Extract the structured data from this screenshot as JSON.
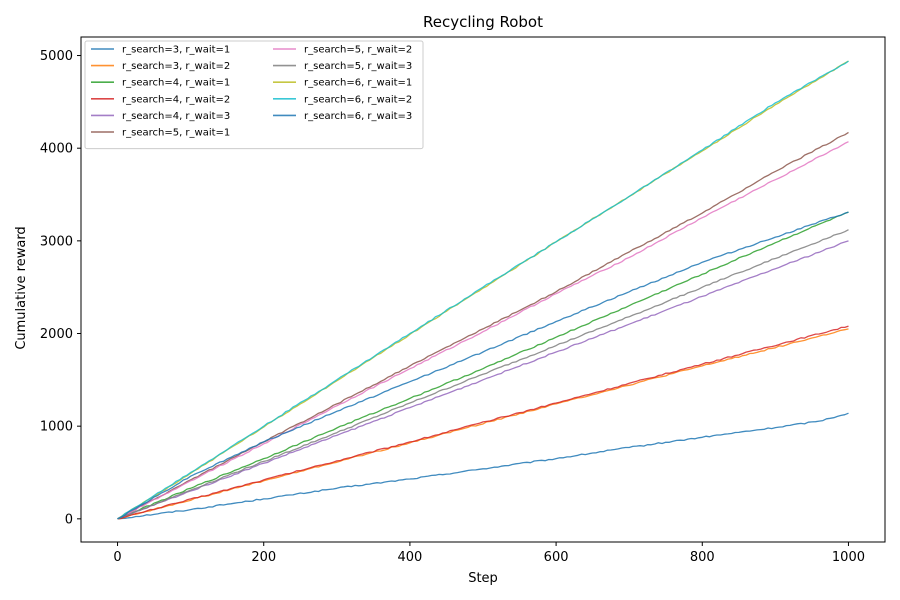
{
  "chart_data": {
    "type": "line",
    "title": "Recycling Robot",
    "xlabel": "Step",
    "ylabel": "Cumulative reward",
    "xlim": [
      -50,
      1050
    ],
    "ylim": [
      -250,
      5200
    ],
    "xticks": [
      0,
      200,
      400,
      600,
      800,
      1000
    ],
    "yticks": [
      0,
      1000,
      2000,
      3000,
      4000,
      5000
    ],
    "grid": false,
    "legend_position": "top-left",
    "legend_columns": 2,
    "series": [
      {
        "name": "r_search=3, r_wait=1",
        "color": "#1f77b4",
        "x": [
          0,
          100,
          200,
          300,
          400,
          500,
          600,
          700,
          800,
          900,
          960,
          1000
        ],
        "y": [
          0,
          100,
          215,
          330,
          430,
          540,
          650,
          770,
          880,
          985,
          1055,
          1140
        ]
      },
      {
        "name": "r_search=3, r_wait=2",
        "color": "#ff7f0e",
        "x": [
          0,
          200,
          400,
          600,
          800,
          1000
        ],
        "y": [
          0,
          410,
          820,
          1240,
          1650,
          2050
        ]
      },
      {
        "name": "r_search=4, r_wait=1",
        "color": "#2ca02c",
        "x": [
          0,
          100,
          200,
          300,
          400,
          500,
          600,
          700,
          800,
          900,
          1000
        ],
        "y": [
          0,
          330,
          650,
          980,
          1300,
          1620,
          1960,
          2300,
          2640,
          2980,
          3310
        ]
      },
      {
        "name": "r_search=4, r_wait=2",
        "color": "#d62728",
        "x": [
          0,
          200,
          400,
          600,
          800,
          1000
        ],
        "y": [
          0,
          420,
          830,
          1250,
          1670,
          2080
        ]
      },
      {
        "name": "r_search=4, r_wait=3",
        "color": "#9467bd",
        "x": [
          0,
          100,
          200,
          300,
          400,
          500,
          600,
          700,
          800,
          900,
          1000
        ],
        "y": [
          0,
          300,
          600,
          900,
          1200,
          1500,
          1800,
          2100,
          2400,
          2700,
          3000
        ]
      },
      {
        "name": "r_search=5, r_wait=1",
        "color": "#8c564b",
        "x": [
          0,
          100,
          200,
          300,
          400,
          500,
          600,
          700,
          800,
          900,
          1000
        ],
        "y": [
          0,
          420,
          830,
          1240,
          1650,
          2050,
          2450,
          2880,
          3300,
          3750,
          4170
        ]
      },
      {
        "name": "r_search=5, r_wait=2",
        "color": "#e377c2",
        "x": [
          0,
          100,
          200,
          300,
          400,
          500,
          600,
          700,
          800,
          900,
          1000
        ],
        "y": [
          0,
          410,
          810,
          1220,
          1620,
          2020,
          2430,
          2820,
          3250,
          3660,
          4070
        ]
      },
      {
        "name": "r_search=5, r_wait=3",
        "color": "#7f7f7f",
        "x": [
          0,
          100,
          200,
          300,
          400,
          500,
          600,
          700,
          800,
          900,
          1000
        ],
        "y": [
          0,
          310,
          620,
          930,
          1250,
          1560,
          1870,
          2180,
          2500,
          2810,
          3120
        ]
      },
      {
        "name": "r_search=6, r_wait=1",
        "color": "#bcbd22",
        "x": [
          0,
          100,
          200,
          300,
          400,
          500,
          600,
          700,
          800,
          900,
          1000
        ],
        "y": [
          0,
          490,
          990,
          1490,
          1990,
          2490,
          2990,
          3480,
          3970,
          4470,
          4940
        ]
      },
      {
        "name": "r_search=6, r_wait=2",
        "color": "#17becf",
        "x": [
          0,
          100,
          200,
          300,
          400,
          500,
          600,
          700,
          800,
          900,
          1000
        ],
        "y": [
          0,
          500,
          1000,
          1500,
          2000,
          2500,
          2990,
          3480,
          3980,
          4490,
          4940
        ]
      },
      {
        "name": "r_search=6, r_wait=3",
        "color": "#1f77b4",
        "x": [
          0,
          100,
          200,
          300,
          400,
          500,
          600,
          700,
          800,
          900,
          1000
        ],
        "y": [
          0,
          460,
          830,
          1160,
          1480,
          1800,
          2130,
          2450,
          2770,
          3040,
          3310
        ]
      }
    ]
  }
}
